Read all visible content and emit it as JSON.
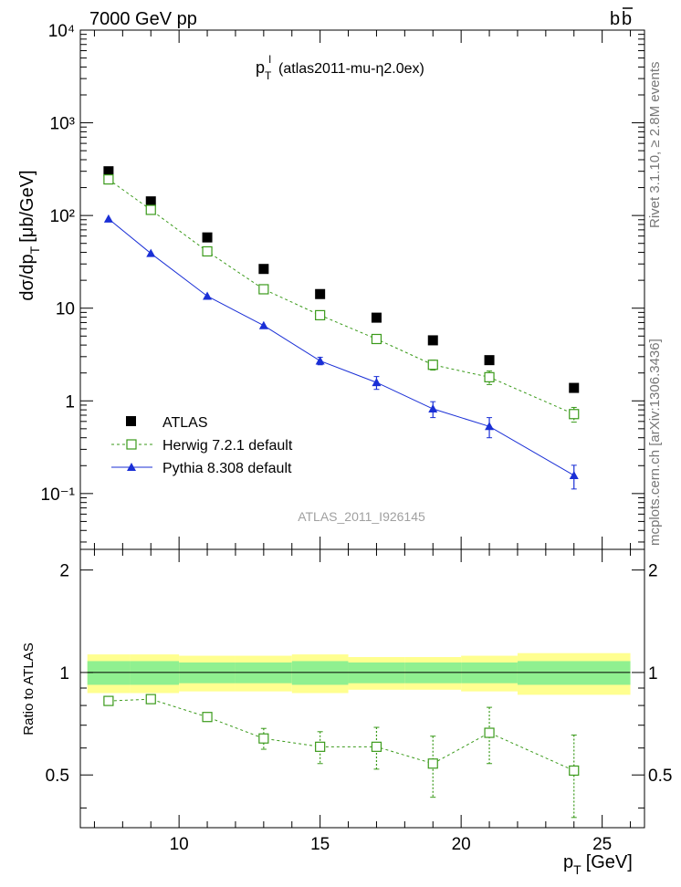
{
  "header": {
    "left": "7000 GeV pp",
    "right_base": "b",
    "right_bar": "b"
  },
  "side_labels": {
    "top": "Rivet 3.1.10, ≥ 2.8M events",
    "bottom": "mcplots.cern.ch [arXiv:1306.3436]"
  },
  "chart_data": [
    {
      "type": "scatter",
      "panel": "main",
      "title_main": "p",
      "title_sub": "T",
      "title_sup": "l",
      "title_rest": "(atlas2011-mu-η2.0ex)",
      "ylabel_pre": "dσ/dp",
      "ylabel_sub": "T",
      "ylabel_post": "[μb/GeV]",
      "xlim": [
        6.5,
        26.5
      ],
      "ylim": [
        0.025,
        10000
      ],
      "yscale": "log",
      "ytick_labels": [
        "10⁻¹",
        "1",
        "10",
        "10²",
        "10³",
        "10⁴"
      ],
      "watermark": "ATLAS_2011_I926145",
      "legend_position": "lower-left",
      "series": [
        {
          "name": "ATLAS",
          "marker": "filled-square",
          "color": "#000000",
          "x": [
            7.5,
            9,
            11,
            13,
            15,
            17,
            19,
            21,
            24
          ],
          "y": [
            300,
            142,
            58,
            26.5,
            14.2,
            7.9,
            4.5,
            2.75,
            1.38
          ]
        },
        {
          "name": "Herwig 7.2.1 default",
          "marker": "open-square",
          "line": "dashed",
          "color": "#3a9a1a",
          "x": [
            7.5,
            9,
            11,
            13,
            15,
            17,
            19,
            21,
            24
          ],
          "y": [
            245,
            115,
            41,
            16,
            8.4,
            4.65,
            2.45,
            1.8,
            0.72
          ],
          "yerr": [
            0,
            0,
            0,
            0,
            0.4,
            0.4,
            0.3,
            0.3,
            0.13
          ]
        },
        {
          "name": "Pythia 8.308 default",
          "marker": "filled-triangle",
          "line": "solid",
          "color": "#1a2fd6",
          "x": [
            7.5,
            9,
            11,
            13,
            15,
            17,
            19,
            21,
            24
          ],
          "y": [
            92,
            39,
            13.5,
            6.5,
            2.7,
            1.58,
            0.82,
            0.53,
            0.157
          ],
          "yerr": [
            0,
            0,
            0,
            0,
            0.25,
            0.25,
            0.16,
            0.13,
            0.045
          ]
        }
      ]
    },
    {
      "type": "scatter",
      "panel": "ratio",
      "ylabel": "Ratio to ATLAS",
      "xlabel_main": "p",
      "xlabel_sub": "T",
      "xlabel_post": "[GeV]",
      "xlim": [
        6.5,
        26.5
      ],
      "ylim": [
        0.35,
        2.3
      ],
      "xticks": [
        10,
        15,
        20,
        25
      ],
      "yticks": [
        0.5,
        1,
        2
      ],
      "band_bins": [
        [
          6.75,
          8.25
        ],
        [
          8.25,
          10
        ],
        [
          10,
          12
        ],
        [
          12,
          14
        ],
        [
          14,
          16
        ],
        [
          16,
          18
        ],
        [
          18,
          20
        ],
        [
          20,
          22
        ],
        [
          22,
          26
        ]
      ],
      "band_inner": [
        0.08,
        0.08,
        0.07,
        0.07,
        0.08,
        0.07,
        0.07,
        0.07,
        0.08
      ],
      "band_outer": [
        0.13,
        0.13,
        0.12,
        0.12,
        0.13,
        0.11,
        0.11,
        0.12,
        0.14
      ],
      "band_colors": {
        "inner": "#90f090",
        "outer": "#ffff90"
      },
      "series": [
        {
          "name": "Herwig 7.2.1 default",
          "marker": "open-square",
          "line": "dashed",
          "color": "#3a9a1a",
          "x": [
            7.5,
            9,
            11,
            13,
            15,
            17,
            19,
            21,
            24
          ],
          "y": [
            0.825,
            0.835,
            0.74,
            0.64,
            0.605,
            0.605,
            0.54,
            0.665,
            0.515
          ],
          "yerr": [
            0,
            0,
            0.02,
            0.045,
            0.065,
            0.085,
            0.11,
            0.125,
            0.14
          ]
        }
      ]
    }
  ]
}
